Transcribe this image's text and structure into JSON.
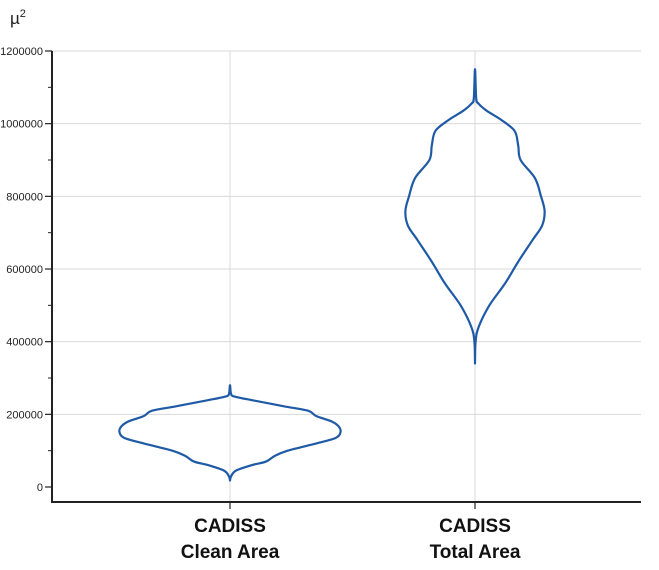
{
  "chart_data": {
    "type": "violin",
    "y_unit_label": "µ²",
    "y_unit_base": "µ",
    "y_unit_exp": "2",
    "ylim": [
      0,
      1200000
    ],
    "y_ticks": [
      0,
      200000,
      400000,
      600000,
      800000,
      1000000,
      1200000
    ],
    "y_tick_labels": [
      "0",
      "200000",
      "400000",
      "600000",
      "800000",
      "1000000",
      "1200000"
    ],
    "y_minor_step": 100000,
    "grid": true,
    "line_color": "#1f5aa6",
    "series": [
      {
        "label_line1": "CADISS",
        "label_line2": "Clean Area",
        "range": [
          18000,
          280000
        ],
        "profile": [
          {
            "y": 18000,
            "w": 0
          },
          {
            "y": 30000,
            "w": 0.01
          },
          {
            "y": 45000,
            "w": 0.05
          },
          {
            "y": 60000,
            "w": 0.18
          },
          {
            "y": 70000,
            "w": 0.3
          },
          {
            "y": 85000,
            "w": 0.37
          },
          {
            "y": 100000,
            "w": 0.48
          },
          {
            "y": 120000,
            "w": 0.72
          },
          {
            "y": 135000,
            "w": 0.88
          },
          {
            "y": 150000,
            "w": 0.92
          },
          {
            "y": 165000,
            "w": 0.91
          },
          {
            "y": 180000,
            "w": 0.85
          },
          {
            "y": 195000,
            "w": 0.72
          },
          {
            "y": 210000,
            "w": 0.65
          },
          {
            "y": 222000,
            "w": 0.45
          },
          {
            "y": 238000,
            "w": 0.2
          },
          {
            "y": 248000,
            "w": 0.05
          },
          {
            "y": 255000,
            "w": 0.01
          },
          {
            "y": 280000,
            "w": 0
          }
        ]
      },
      {
        "label_line1": "CADISS",
        "label_line2": "Total Area",
        "range": [
          340000,
          1150000
        ],
        "profile": [
          {
            "y": 340000,
            "w": 0
          },
          {
            "y": 400000,
            "w": 0.005
          },
          {
            "y": 440000,
            "w": 0.03
          },
          {
            "y": 500000,
            "w": 0.12
          },
          {
            "y": 560000,
            "w": 0.25
          },
          {
            "y": 620000,
            "w": 0.36
          },
          {
            "y": 680000,
            "w": 0.48
          },
          {
            "y": 720000,
            "w": 0.56
          },
          {
            "y": 760000,
            "w": 0.58
          },
          {
            "y": 800000,
            "w": 0.55
          },
          {
            "y": 850000,
            "w": 0.5
          },
          {
            "y": 900000,
            "w": 0.38
          },
          {
            "y": 940000,
            "w": 0.36
          },
          {
            "y": 980000,
            "w": 0.33
          },
          {
            "y": 1010000,
            "w": 0.22
          },
          {
            "y": 1035000,
            "w": 0.1
          },
          {
            "y": 1055000,
            "w": 0.03
          },
          {
            "y": 1070000,
            "w": 0.01
          },
          {
            "y": 1150000,
            "w": 0
          }
        ]
      }
    ]
  }
}
